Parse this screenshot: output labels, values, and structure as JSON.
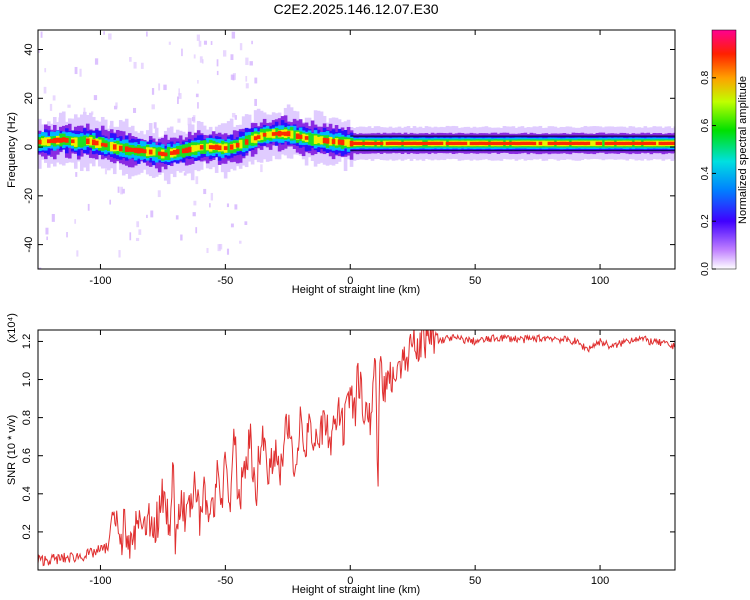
{
  "title": "C2E2.2025.146.12.07.E30",
  "colors": {
    "signal_track": "#d40000",
    "snr_line": "#e03030",
    "axis": "#000000"
  },
  "chart_data": [
    {
      "type": "heatmap",
      "xlabel": "Height of straight line (km)",
      "ylabel": "Frequency (Hz)",
      "xlim": [
        -125,
        130
      ],
      "ylim": [
        -50,
        48
      ],
      "xticks": [
        -100,
        -50,
        0,
        50,
        100
      ],
      "xtick_labels": [
        "-100",
        "-50",
        "0",
        "50",
        "100"
      ],
      "yticks": [
        40,
        20,
        0,
        -20,
        -40
      ],
      "ytick_labels": [
        "40",
        "20",
        "0",
        "-20",
        "-40"
      ],
      "colorbar": {
        "label": "Normalized spectral amplitude",
        "range": [
          0,
          1
        ],
        "ticks": [
          0.0,
          0.2,
          0.4,
          0.6,
          0.8
        ],
        "tick_labels": [
          "0.0",
          "0.2",
          "0.4",
          "0.6",
          "0.8"
        ],
        "colormap": [
          "#ffffff",
          "#b040ff",
          "#2000ff",
          "#00d0ff",
          "#00e000",
          "#ffff00",
          "#ff3000",
          "#ff0090"
        ]
      },
      "track": [
        [
          -125,
          2
        ],
        [
          -120,
          2.5
        ],
        [
          -115,
          3
        ],
        [
          -110,
          2
        ],
        [
          -105,
          2.5
        ],
        [
          -100,
          1
        ],
        [
          -95,
          0
        ],
        [
          -90,
          -1
        ],
        [
          -85,
          -1.5
        ],
        [
          -80,
          -2
        ],
        [
          -75,
          -3
        ],
        [
          -70,
          -2
        ],
        [
          -65,
          -1
        ],
        [
          -60,
          0
        ],
        [
          -55,
          0
        ],
        [
          -50,
          -0.5
        ],
        [
          -45,
          1
        ],
        [
          -40,
          3
        ],
        [
          -35,
          5
        ],
        [
          -30,
          5.5
        ],
        [
          -25,
          5.5
        ],
        [
          -20,
          4
        ],
        [
          -15,
          3
        ],
        [
          -10,
          2.5
        ],
        [
          -5,
          2
        ],
        [
          0,
          1.5
        ],
        [
          10,
          1.5
        ],
        [
          20,
          1.5
        ],
        [
          30,
          1.5
        ],
        [
          50,
          1.5
        ],
        [
          80,
          1.5
        ],
        [
          100,
          1.5
        ],
        [
          130,
          1.5
        ]
      ]
    },
    {
      "type": "line",
      "xlabel": "Height of straight line (km)",
      "ylabel": "SNR (10 * v/v)",
      "multiplier": "(x10⁴)",
      "xlim": [
        -125,
        130
      ],
      "ylim": [
        0,
        1.26
      ],
      "xticks": [
        -100,
        -50,
        0,
        50,
        100
      ],
      "xtick_labels": [
        "-100",
        "-50",
        "0",
        "50",
        "100"
      ],
      "yticks": [
        0.2,
        0.4,
        0.6,
        0.8,
        1.0,
        1.2
      ],
      "ytick_labels": [
        "0.2",
        "0.4",
        "0.6",
        "0.8",
        "1.0",
        "1.2"
      ],
      "series": [
        {
          "x": [
            -125,
            -115,
            -105,
            -97,
            -95,
            -92,
            -90,
            -88,
            -85,
            -83,
            -80,
            -78,
            -75,
            -72,
            -71,
            -70,
            -68,
            -65,
            -62,
            -60,
            -58,
            -55,
            -53,
            -52,
            -50,
            -48,
            -46,
            -45,
            -43,
            -40,
            -38,
            -35,
            -33,
            -30,
            -28,
            -25,
            -22,
            -20,
            -18,
            -16,
            -15,
            -13,
            -10,
            -8,
            -5,
            -3,
            0,
            2,
            3,
            5,
            8,
            10,
            11,
            12,
            13,
            15,
            18,
            20,
            25,
            30,
            35,
            40,
            45,
            50,
            60,
            70,
            80,
            90,
            95,
            100,
            105,
            110,
            115,
            120,
            125,
            130
          ],
          "y": [
            0.05,
            0.06,
            0.08,
            0.12,
            0.3,
            0.15,
            0.22,
            0.12,
            0.25,
            0.18,
            0.3,
            0.2,
            0.4,
            0.25,
            0.52,
            0.18,
            0.35,
            0.28,
            0.45,
            0.22,
            0.42,
            0.3,
            0.55,
            0.3,
            0.6,
            0.35,
            0.78,
            0.3,
            0.5,
            0.7,
            0.4,
            0.75,
            0.45,
            0.68,
            0.5,
            0.78,
            0.55,
            0.82,
            0.6,
            0.88,
            0.55,
            0.68,
            0.78,
            0.65,
            0.82,
            0.72,
            0.92,
            0.8,
            1.05,
            0.9,
            0.78,
            1.12,
            0.45,
            1.18,
            0.9,
            1.02,
            1.05,
            1.1,
            1.15,
            1.2,
            1.2,
            1.22,
            1.21,
            1.2,
            1.22,
            1.21,
            1.22,
            1.2,
            1.16,
            1.2,
            1.17,
            1.2,
            1.22,
            1.2,
            1.19,
            1.17
          ]
        }
      ]
    }
  ]
}
